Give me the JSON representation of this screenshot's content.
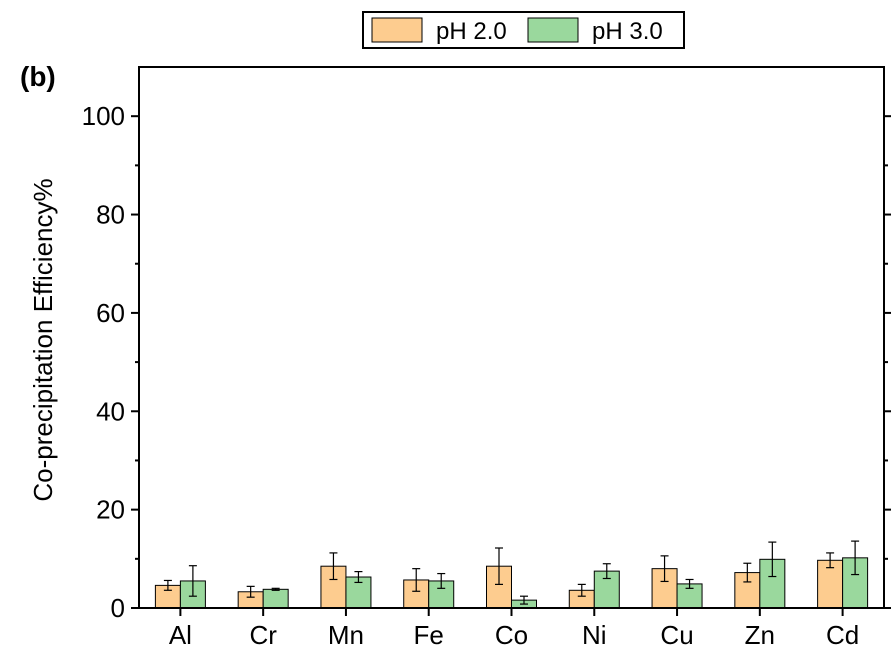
{
  "panel_label": "(b)",
  "chart_data": {
    "type": "bar",
    "ylabel": "Co-precipitation Efficiency%",
    "xlabel": "",
    "ylim": [
      0,
      110
    ],
    "yticks": [
      0,
      20,
      40,
      60,
      80,
      100
    ],
    "categories": [
      "Al",
      "Cr",
      "Mn",
      "Fe",
      "Co",
      "Ni",
      "Cu",
      "Zn",
      "Cd"
    ],
    "series": [
      {
        "name": "pH 2.0",
        "color": "#FDCC8F",
        "values": [
          4.6,
          3.3,
          8.5,
          5.7,
          8.5,
          3.6,
          8.0,
          7.2,
          9.7
        ],
        "errors": [
          1.0,
          1.1,
          2.7,
          2.3,
          3.7,
          1.2,
          2.6,
          1.9,
          1.5
        ]
      },
      {
        "name": "pH 3.0",
        "color": "#9AD89D",
        "values": [
          5.5,
          3.8,
          6.3,
          5.5,
          1.6,
          7.5,
          4.9,
          9.9,
          10.2
        ],
        "errors": [
          3.1,
          0.2,
          1.1,
          1.5,
          0.8,
          1.5,
          0.9,
          3.5,
          3.4
        ]
      }
    ],
    "grid": false,
    "legend_position": "top-center"
  }
}
